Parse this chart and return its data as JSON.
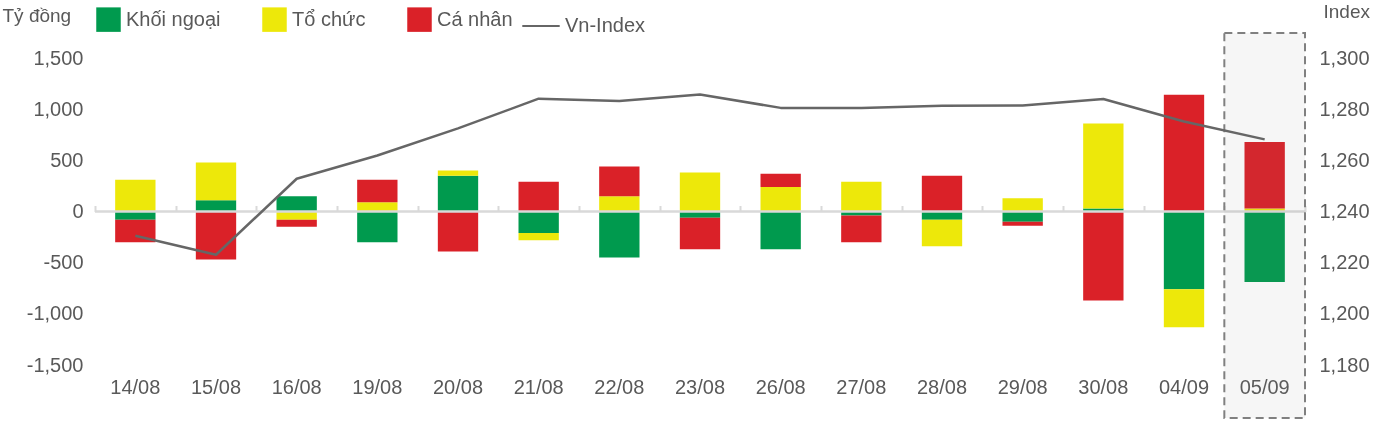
{
  "chart_data": {
    "type": "bar",
    "stacked": true,
    "ylabel": "Tỷ đồng",
    "y2label": "Index",
    "categories": [
      "14/08",
      "15/08",
      "16/08",
      "19/08",
      "20/08",
      "21/08",
      "22/08",
      "23/08",
      "26/08",
      "27/08",
      "28/08",
      "29/08",
      "30/08",
      "04/09",
      "05/09"
    ],
    "series": [
      {
        "name": "Khối ngoại",
        "color": "#009a4e",
        "values": [
          -80,
          110,
          150,
          -300,
          350,
          -210,
          -450,
          -60,
          -370,
          -40,
          -80,
          -100,
          30,
          -760,
          -690
        ]
      },
      {
        "name": "Tổ chức",
        "color": "#ede80a",
        "values": [
          310,
          370,
          -80,
          90,
          50,
          -70,
          150,
          380,
          240,
          290,
          -260,
          130,
          830,
          -370,
          30
        ]
      },
      {
        "name": "Cá nhân",
        "color": "#da2128",
        "values": [
          -220,
          -470,
          -70,
          220,
          -390,
          290,
          290,
          -310,
          130,
          -260,
          350,
          -40,
          -870,
          1140,
          650
        ]
      },
      {
        "name": "Vn-Index",
        "type": "line",
        "axis": "y2",
        "color": "#666666",
        "values": [
          1230.5,
          1223.1,
          1252.8,
          1261.9,
          1272.5,
          1284.1,
          1283.2,
          1285.7,
          1280.5,
          1280.5,
          1281.3,
          1281.4,
          1284,
          1275.2,
          1268.2
        ]
      }
    ],
    "ylim": [
      -1500,
      1500
    ],
    "yticks": [
      {
        "value": -1500,
        "label": "-1,500"
      },
      {
        "value": -1000,
        "label": "-1,000"
      },
      -500,
      0,
      500,
      {
        "value": 1000,
        "label": "1,000"
      },
      {
        "value": 1500,
        "label": "1,500"
      }
    ],
    "y2lim": [
      1180,
      1300
    ],
    "y2ticks": [
      {
        "value": 1180,
        "label": "1,180"
      },
      {
        "value": 1200,
        "label": "1,200"
      },
      {
        "value": 1220,
        "label": "1,220"
      },
      {
        "value": 1240,
        "label": "1,240"
      },
      {
        "value": 1260,
        "label": "1,260"
      },
      {
        "value": 1280,
        "label": "1,280"
      },
      {
        "value": 1300,
        "label": "1,300"
      }
    ],
    "bands": [
      {
        "axis": "x",
        "from": "05/09",
        "to": "05/09",
        "color": "#808080"
      }
    ],
    "ref_lines": [
      {
        "axis": "y",
        "value": 0,
        "color": "#d9d9d9"
      }
    ],
    "legend": "top",
    "grid": false
  }
}
